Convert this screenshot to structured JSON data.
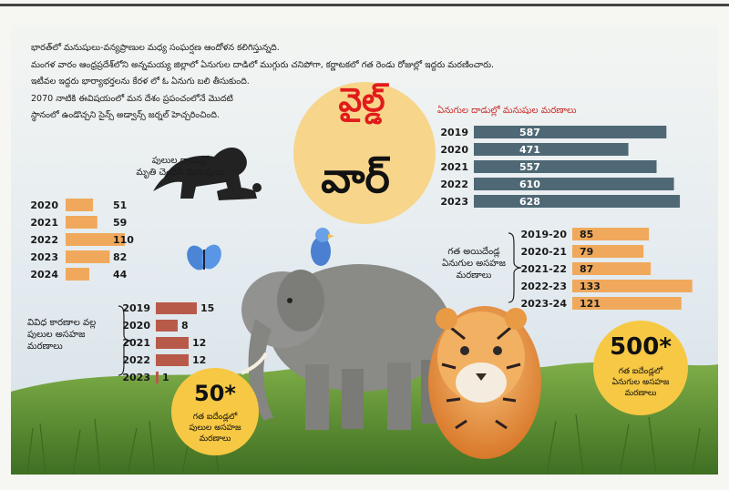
{
  "intro_lines": [
    "భారత్‌లో మనుషులు-వన్యప్రాణుల మధ్య సంఘర్షణ ఆందోళన కలిగిస్తున్నది.",
    "మంగళ వారం ఆంధ్రప్రదేశ్‌లోని అన్నమయ్య జిల్లాలో ఏనుగుల దాడిలో ముగ్గురు చనిపోగా, కర్ణాటకలో గత రెండు రోజుల్లో ఇద్దరు మరణించారు.",
    "ఇటీవల ఇద్దరు భార్యాభర్తలను కేరళ లో ఓ ఏనుగు బలి తీసుకుంది.",
    "2070 నాటికి ఈవిషయంలో మన దేశం ప్రపంచంలోనే మొదటి",
    "స్థానంలో ఉండొచ్చని సైన్స్ అడ్వాన్స్ జర్నల్ హెచ్చరించింది."
  ],
  "title_line1": "వైల్డ్",
  "title_line2": "వార్",
  "badge_left": {
    "value": "50*",
    "text": [
      "గత ఐదేండ్లలో",
      "పులుల అసహజ",
      "మరణాలు"
    ]
  },
  "badge_right": {
    "value": "500*",
    "text": [
      "గత ఐదేండ్లలో",
      "ఏనుగుల అసహజ",
      "మరణాలు"
    ]
  },
  "colors": {
    "tiger_attack": "#f0a95c",
    "elephant_attack": "#4f6875",
    "elephant_deaths": "#f0a95c",
    "tiger_deaths": "#b85a4a",
    "sun": "#f7d58a",
    "grass": "#5a8b2e",
    "sky": "#dfe7ee"
  },
  "chart_data": [
    {
      "type": "bar",
      "title": "పులుల దాడుల్లో మృతి చెందిన మనుషులు",
      "title_lines": [
        "పులుల దాడుల్లో",
        "మృతి చెందిన మనుషులు"
      ],
      "categories": [
        "2020",
        "2021",
        "2022",
        "2023",
        "2024"
      ],
      "values": [
        51,
        59,
        110,
        82,
        44
      ],
      "orientation": "horizontal"
    },
    {
      "type": "bar",
      "title": "ఏనుగుల దాడుల్లో మనుషుల మరణాలు",
      "categories": [
        "2019",
        "2020",
        "2021",
        "2022",
        "2023"
      ],
      "values": [
        587,
        471,
        557,
        610,
        628
      ],
      "orientation": "horizontal"
    },
    {
      "type": "bar",
      "title": "గత అయిదేండ్ల ఏనుగుల అసహజ మరణాలు",
      "title_lines": [
        "గత అయిదేండ్ల",
        "ఏనుగుల అసహజ",
        "మరణాలు"
      ],
      "categories": [
        "2019-20",
        "2020-21",
        "2021-22",
        "2022-23",
        "2023-24"
      ],
      "values": [
        85,
        79,
        87,
        133,
        121
      ],
      "orientation": "horizontal"
    },
    {
      "type": "bar",
      "title": "వివిధ కారణాల వల్ల పులుల అసహజ మరణాలు",
      "title_lines": [
        "వివిధ కారణాల వల్ల",
        "పులుల అసహజ",
        "మరణాలు"
      ],
      "categories": [
        "2019",
        "2020",
        "2021",
        "2022",
        "2023"
      ],
      "values": [
        15,
        8,
        12,
        12,
        1
      ],
      "orientation": "horizontal"
    }
  ]
}
